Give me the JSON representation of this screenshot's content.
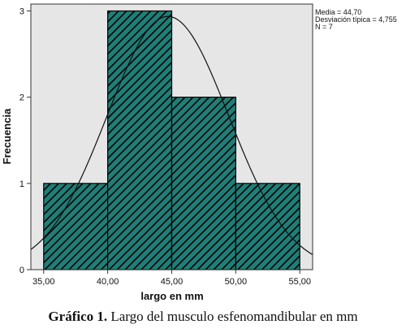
{
  "caption": {
    "label": "Gráfico 1.",
    "text": "Largo del musculo esfenomandibular en mm"
  },
  "stats": {
    "mean": "Media = 44,70",
    "sd": "Desviación típica = 4,755",
    "n": "N = 7"
  },
  "chart_data": {
    "type": "bar",
    "subtype": "histogram",
    "xlabel": "largo en mm",
    "ylabel": "Frecuencia",
    "xlim": [
      34,
      56
    ],
    "ylim": [
      0,
      3.08
    ],
    "x_ticks": [
      "35,00",
      "40,00",
      "45,00",
      "50,00",
      "55,00"
    ],
    "x_tick_values": [
      35,
      40,
      45,
      50,
      55
    ],
    "y_ticks": [
      "0",
      "1",
      "2",
      "3"
    ],
    "y_tick_values": [
      0,
      1,
      2,
      3
    ],
    "bins": [
      {
        "start": 35,
        "end": 40,
        "count": 1
      },
      {
        "start": 40,
        "end": 45,
        "count": 3
      },
      {
        "start": 45,
        "end": 50,
        "count": 2
      },
      {
        "start": 50,
        "end": 55,
        "count": 1
      }
    ],
    "normal_curve": {
      "mean": 44.7,
      "sd": 4.755,
      "n": 7,
      "bin_width": 5
    },
    "bar_color": "#1f7f78",
    "hatch_color": "#000000",
    "plot_background": "#e6e6e6",
    "grid": false
  }
}
